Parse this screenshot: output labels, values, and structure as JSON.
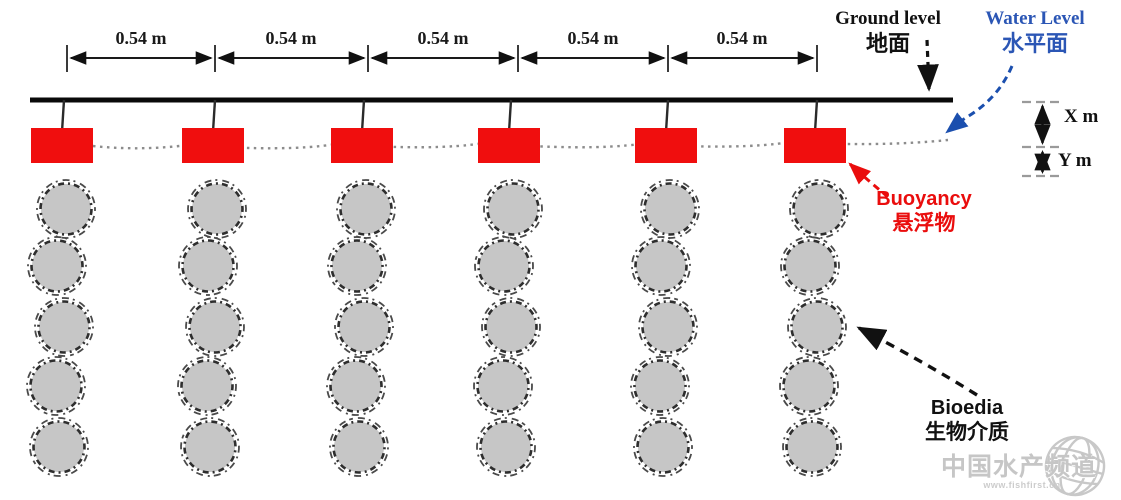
{
  "diagram": {
    "dimension_labels": [
      "0.54 m",
      "0.54 m",
      "0.54 m",
      "0.54 m",
      "0.54 m"
    ],
    "ground_label": {
      "en": "Ground level",
      "zh": "地面"
    },
    "water_label": {
      "en": "Water Level",
      "zh": "水平面"
    },
    "buoyancy_label": {
      "en": "Buoyancy",
      "zh": "悬浮物"
    },
    "biomedia_label": {
      "en": "Bioedia",
      "zh": "生物介质"
    },
    "depth_markers": {
      "x": "X m",
      "y": "Y m"
    },
    "counts": {
      "buoys": 6,
      "chains": 6,
      "balls_per_chain": 5
    },
    "colors": {
      "buoy": "#f00e0e",
      "water_text": "#2b56b5",
      "water_arrow": "#1b4fae",
      "buoyancy_text": "#ea0d0d",
      "ball_fill": "#c6c6c6",
      "ball_outline": "#2e2e2e",
      "water_line": "#8c8c8c"
    }
  },
  "watermark": {
    "title": "中国水产频道",
    "url": "www.fishfirst.cn"
  }
}
